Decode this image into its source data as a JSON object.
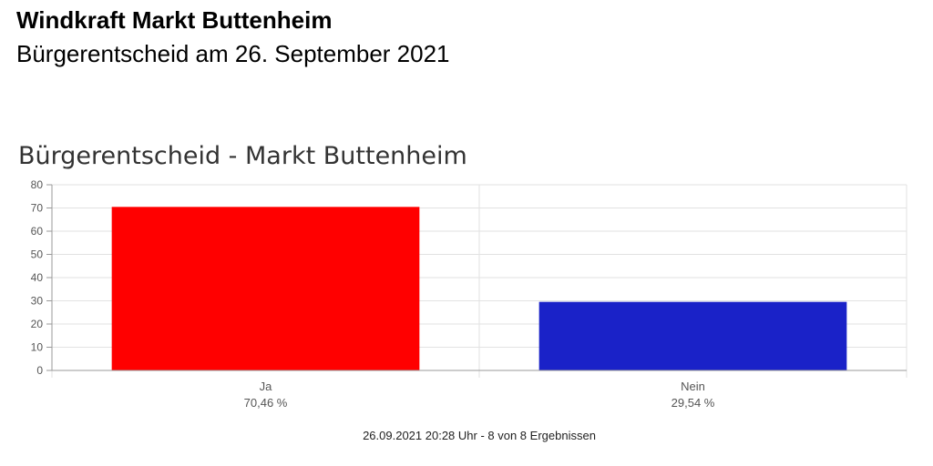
{
  "header": {
    "title": "Windkraft Markt Buttenheim",
    "subtitle": "Bürgerentscheid am 26. September 2021"
  },
  "chart_data": {
    "type": "bar",
    "title": "Bürgerentscheid - Markt Buttenheim",
    "categories": [
      "Ja",
      "Nein"
    ],
    "values": [
      70.46,
      29.54
    ],
    "value_labels": [
      "70,46 %",
      "29,54 %"
    ],
    "colors": [
      "#ff0000",
      "#1a22c8"
    ],
    "yticks": [
      0,
      10,
      20,
      30,
      40,
      50,
      60,
      70,
      80
    ],
    "ylim": [
      0,
      80
    ],
    "xlabel": "",
    "ylabel": "",
    "grid": true,
    "legend": "none"
  },
  "footer": {
    "status": "26.09.2021 20:28 Uhr - 8 von 8 Ergebnissen"
  }
}
